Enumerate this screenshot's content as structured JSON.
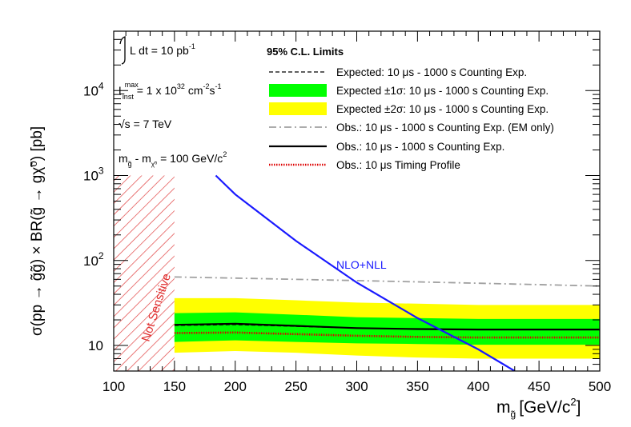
{
  "chart_data": {
    "type": "line",
    "title": "",
    "xlabel": "m",
    "xlabel_sub": "g̃",
    "xlabel_units": "[GeV/c",
    "xlabel_units_sup": "2",
    "xlabel_units_end": "]",
    "ylabel": "σ(pp → g̃g̃) × BR(g̃ → gχ̃⁰) [pb]",
    "xlim": [
      100,
      500
    ],
    "ylim_log": [
      5,
      50000
    ],
    "x_ticks": [
      100,
      150,
      200,
      250,
      300,
      350,
      400,
      450,
      500
    ],
    "x_tick_labels": [
      "100",
      "150",
      "200",
      "250",
      "300",
      "350",
      "400",
      "450",
      "500"
    ],
    "y_ticks": [
      {
        "value": 10,
        "label": "10",
        "exp": ""
      },
      {
        "value": 100,
        "label": "10",
        "exp": "2"
      },
      {
        "value": 1000,
        "label": "10",
        "exp": "3"
      },
      {
        "value": 10000,
        "label": "10",
        "exp": "4"
      }
    ],
    "legend_title": "95% C.L. Limits",
    "legend": [
      {
        "label": "Expected: 10 μs - 1000 s Counting Exp.",
        "kind": "dashed-black"
      },
      {
        "label": "Expected ±1σ: 10 μs - 1000 s Counting Exp.",
        "kind": "band-green"
      },
      {
        "label": "Expected ±2σ: 10 μs - 1000 s Counting Exp.",
        "kind": "band-yellow"
      },
      {
        "label": "Obs.: 10 μs - 1000 s Counting Exp. (EM only)",
        "kind": "dashdot-gray"
      },
      {
        "label": "Obs.: 10 μs - 1000 s Counting Exp.",
        "kind": "solid-black"
      },
      {
        "label": "Obs.: 10 μs Timing Profile",
        "kind": "dotted-red"
      }
    ],
    "annotations": {
      "lumi": "L dt = 10 pb",
      "lumi_sup": "-1",
      "linst_prefix": "L",
      "linst_sup": "max",
      "linst_sub": "inst",
      "linst_value": " = 1 x 10",
      "linst_exp": "32",
      "linst_units": " cm",
      "linst_units_exp": "-2",
      "linst_units2": "s",
      "linst_units2_exp": "-1",
      "sqrts_symbol": "√s",
      "sqrts_value": " = 7 TeV",
      "mass_diff_m1": "m",
      "mass_diff_sub1": "g̃",
      "mass_diff_mid": " - m",
      "mass_diff_sub2": "χ̃⁰",
      "mass_diff_value": " = 100 GeV/c",
      "mass_diff_exp": "2",
      "not_sensitive": "Not Sensitive",
      "nlo_label": "NLO+NLL"
    },
    "not_sensitive_region": {
      "x_range": [
        100,
        150
      ],
      "y_max": 1000
    },
    "series": [
      {
        "name": "Expected ±2σ",
        "kind": "band-yellow",
        "color": "#ffff00",
        "x": [
          150,
          200,
          250,
          300,
          350,
          400,
          450,
          500
        ],
        "low": [
          8.2,
          8.6,
          8.2,
          7.6,
          7.2,
          7.0,
          7.0,
          7.0
        ],
        "high": [
          36,
          36,
          34,
          32,
          31,
          30,
          30,
          30
        ]
      },
      {
        "name": "Expected ±1σ",
        "kind": "band-green",
        "color": "#00ff00",
        "x": [
          150,
          200,
          250,
          300,
          350,
          400,
          450,
          500
        ],
        "low": [
          11,
          11.5,
          11,
          10.6,
          10.4,
          10.2,
          10.2,
          10.2
        ],
        "high": [
          24,
          24.5,
          23,
          21.5,
          21,
          20.5,
          20.5,
          20.5
        ]
      },
      {
        "name": "Expected",
        "kind": "dashed-black",
        "color": "#000000",
        "x": [
          150,
          200,
          250,
          300,
          350,
          400,
          450,
          500
        ],
        "y": [
          17.2,
          17.6,
          16.8,
          16.0,
          15.6,
          15.4,
          15.4,
          15.4
        ]
      },
      {
        "name": "Obs. (EM only)",
        "kind": "dashdot-gray",
        "color": "#999999",
        "x": [
          150,
          200,
          250,
          300,
          350,
          400,
          450,
          500
        ],
        "y": [
          64,
          62,
          60,
          58,
          56,
          54,
          52,
          50
        ]
      },
      {
        "name": "Obs. Counting Exp.",
        "kind": "solid-black",
        "color": "#000000",
        "x": [
          150,
          200,
          250,
          300,
          350,
          400,
          450,
          500
        ],
        "y": [
          17.5,
          18.0,
          17.0,
          16.0,
          15.6,
          15.4,
          15.4,
          15.4
        ]
      },
      {
        "name": "Obs. Timing Profile",
        "kind": "dotted-red",
        "color": "#dd0000",
        "x": [
          150,
          200,
          250,
          300,
          350,
          400,
          450,
          500
        ],
        "y": [
          14.0,
          14.2,
          13.6,
          13.0,
          12.6,
          12.4,
          12.4,
          12.4
        ]
      },
      {
        "name": "NLO+NLL",
        "kind": "solid-blue",
        "color": "#1a1aff",
        "x": [
          184,
          200,
          250,
          300,
          350,
          400,
          430
        ],
        "y": [
          1000,
          600,
          170,
          55,
          21,
          9,
          5
        ]
      }
    ]
  }
}
